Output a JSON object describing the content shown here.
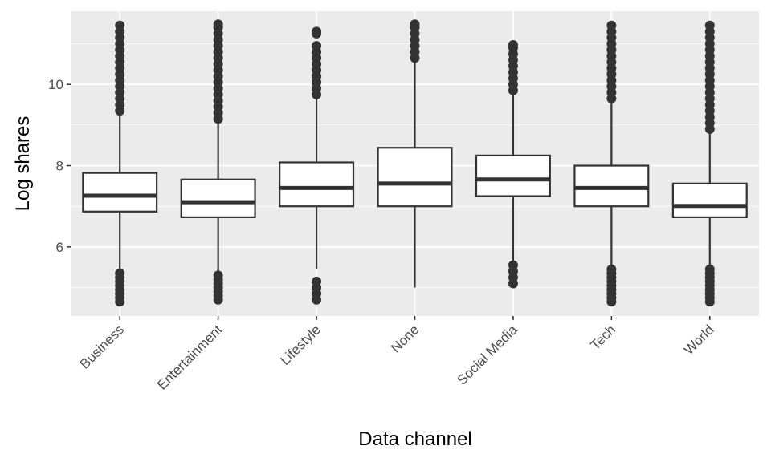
{
  "chart_data": {
    "type": "boxplot",
    "title": "",
    "xlabel": "Data channel",
    "ylabel": "Log shares",
    "categories": [
      "Business",
      "Entertainment",
      "Lifestyle",
      "None",
      "Social Media",
      "Tech",
      "World"
    ],
    "ylim": [
      4.3,
      11.8
    ],
    "yticks": [
      6,
      8,
      10
    ],
    "grid": true,
    "legend": "none",
    "boxes": [
      {
        "category": "Business",
        "whisker_low": 5.45,
        "q1": 6.87,
        "median": 7.26,
        "q3": 7.82,
        "whisker_high": 9.25,
        "outliers_low": [
          4.65,
          4.75,
          4.85,
          4.95,
          5.05,
          5.15,
          5.25,
          5.35
        ],
        "outliers_high": [
          9.35,
          9.5,
          9.65,
          9.8,
          9.95,
          10.1,
          10.25,
          10.4,
          10.55,
          10.7,
          10.85,
          11.0,
          11.15,
          11.3,
          11.45
        ]
      },
      {
        "category": "Entertainment",
        "whisker_low": 5.4,
        "q1": 6.73,
        "median": 7.1,
        "q3": 7.66,
        "whisker_high": 9.05,
        "outliers_low": [
          4.7,
          4.8,
          4.9,
          5.0,
          5.1,
          5.2,
          5.3
        ],
        "outliers_high": [
          9.15,
          9.3,
          9.45,
          9.6,
          9.75,
          9.9,
          10.05,
          10.2,
          10.35,
          10.5,
          10.65,
          10.8,
          10.95,
          11.1,
          11.25,
          11.4,
          11.48
        ]
      },
      {
        "category": "Lifestyle",
        "whisker_low": 5.45,
        "q1": 7.0,
        "median": 7.45,
        "q3": 8.08,
        "whisker_high": 9.65,
        "outliers_low": [
          4.7,
          4.85,
          5.0,
          5.15
        ],
        "outliers_high": [
          9.75,
          9.9,
          10.05,
          10.2,
          10.35,
          10.5,
          10.65,
          10.8,
          10.95,
          11.25,
          11.3
        ]
      },
      {
        "category": "None",
        "whisker_low": 5.0,
        "q1": 7.0,
        "median": 7.56,
        "q3": 8.44,
        "whisker_high": 10.55,
        "outliers_low": [],
        "outliers_high": [
          10.65,
          10.8,
          10.95,
          11.1,
          11.25,
          11.4,
          11.48
        ]
      },
      {
        "category": "Social Media",
        "whisker_low": 5.65,
        "q1": 7.25,
        "median": 7.66,
        "q3": 8.25,
        "whisker_high": 9.75,
        "outliers_low": [
          5.1,
          5.25,
          5.4,
          5.55
        ],
        "outliers_high": [
          9.85,
          10.0,
          10.15,
          10.3,
          10.45,
          10.6,
          10.75,
          10.9,
          10.97
        ]
      },
      {
        "category": "Tech",
        "whisker_low": 5.5,
        "q1": 7.0,
        "median": 7.45,
        "q3": 8.0,
        "whisker_high": 9.55,
        "outliers_low": [
          4.65,
          4.75,
          4.85,
          4.95,
          5.05,
          5.15,
          5.25,
          5.35,
          5.45
        ],
        "outliers_high": [
          9.65,
          9.8,
          9.95,
          10.1,
          10.25,
          10.4,
          10.55,
          10.7,
          10.85,
          11.0,
          11.15,
          11.3,
          11.45
        ]
      },
      {
        "category": "World",
        "whisker_low": 5.5,
        "q1": 6.73,
        "median": 7.01,
        "q3": 7.56,
        "whisker_high": 8.8,
        "outliers_low": [
          4.65,
          4.75,
          4.85,
          4.95,
          5.05,
          5.15,
          5.25,
          5.35,
          5.45
        ],
        "outliers_high": [
          8.9,
          9.05,
          9.2,
          9.35,
          9.5,
          9.65,
          9.8,
          9.95,
          10.1,
          10.25,
          10.4,
          10.55,
          10.7,
          10.85,
          11.0,
          11.15,
          11.3,
          11.45
        ]
      }
    ],
    "colors": {
      "panel_background": "#ebebeb",
      "grid_line": "#ffffff",
      "box_fill": "#ffffff",
      "box_stroke": "#333333",
      "outlier": "#333333",
      "tick_text": "#4d4d4d",
      "tick_mark": "#333333",
      "axis_title": "#000000"
    }
  }
}
